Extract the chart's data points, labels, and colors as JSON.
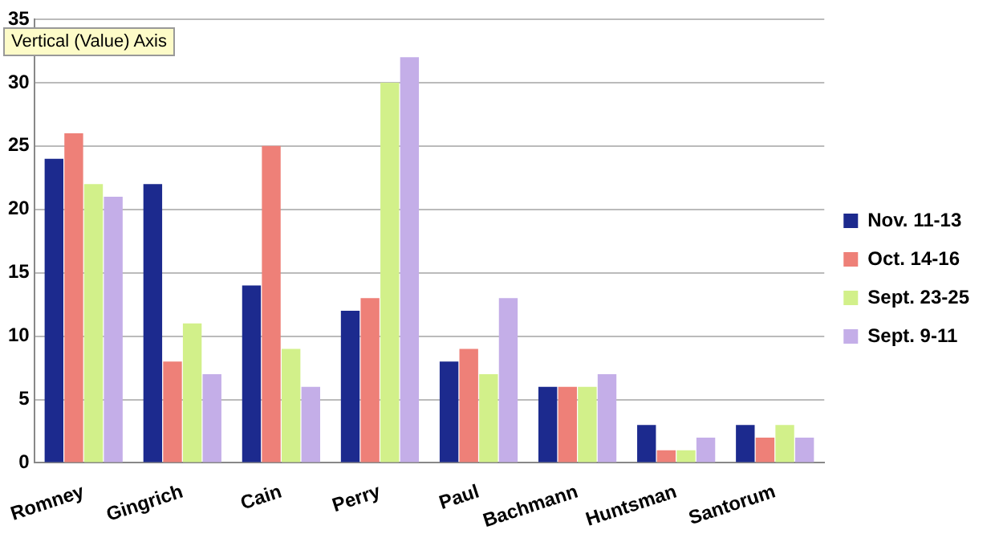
{
  "chart_data": {
    "type": "bar",
    "categories": [
      "Romney",
      "Gingrich",
      "Cain",
      "Perry",
      "Paul",
      "Bachmann",
      "Huntsman",
      "Santorum"
    ],
    "series": [
      {
        "name": "Nov. 11-13",
        "color": "#1c2a8e",
        "values": [
          24,
          22,
          14,
          12,
          8,
          6,
          3,
          3
        ]
      },
      {
        "name": "Oct. 14-16",
        "color": "#ee8078",
        "values": [
          26,
          8,
          25,
          13,
          9,
          6,
          1,
          2
        ]
      },
      {
        "name": "Sept. 23-25",
        "color": "#d2f08a",
        "values": [
          22,
          11,
          9,
          30,
          7,
          6,
          1,
          3
        ]
      },
      {
        "name": "Sept. 9-11",
        "color": "#c4aee8",
        "values": [
          21,
          7,
          6,
          32,
          13,
          7,
          2,
          2
        ]
      }
    ],
    "ylim": [
      0,
      35
    ],
    "yticks": [
      0,
      5,
      10,
      15,
      20,
      25,
      30,
      35
    ],
    "grid": "y",
    "legend": "right",
    "annotations": [
      "Vertical (Value) Axis"
    ]
  }
}
